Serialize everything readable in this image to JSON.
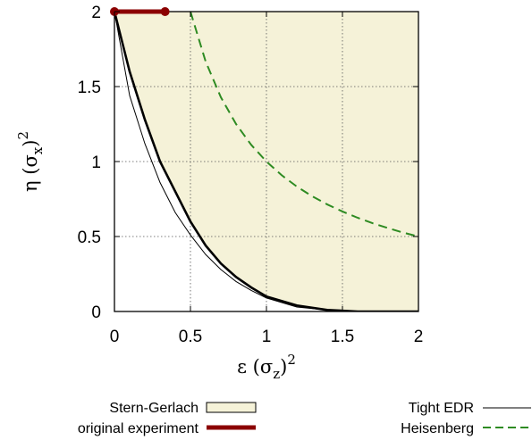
{
  "chart_data": {
    "type": "line",
    "xlabel": {
      "main": "ε (σ",
      "sub": "z",
      "close": ")",
      "sup": "2"
    },
    "ylabel": {
      "main": "η (σ",
      "sub": "x",
      "close": ")",
      "sup": "2"
    },
    "xlim": [
      0,
      2
    ],
    "ylim": [
      0,
      2
    ],
    "xticks": [
      "0",
      "0.5",
      "1",
      "1.5",
      "2"
    ],
    "yticks": [
      "0",
      "0.5",
      "1",
      "1.5",
      "2"
    ],
    "grid": true,
    "legend_position": "bottom",
    "series": [
      {
        "name": "Stern-Gerlach",
        "style": "filled-region",
        "color": "#f5f2d8",
        "lower_boundary": [
          [
            0,
            2
          ],
          [
            0.1,
            1.6
          ],
          [
            0.2,
            1.28
          ],
          [
            0.3,
            1.0
          ],
          [
            0.4,
            0.8
          ],
          [
            0.5,
            0.6
          ],
          [
            0.6,
            0.44
          ],
          [
            0.7,
            0.32
          ],
          [
            0.8,
            0.23
          ],
          [
            0.9,
            0.16
          ],
          [
            1.0,
            0.1
          ],
          [
            1.2,
            0.04
          ],
          [
            1.4,
            0.01
          ],
          [
            1.6,
            0.0
          ],
          [
            2,
            0
          ]
        ]
      },
      {
        "name": "original experiment",
        "style": "thick-line-with-endpoints",
        "color": "#8b0000",
        "points": [
          [
            0,
            2
          ],
          [
            0.333,
            2
          ]
        ]
      },
      {
        "name": "Tight EDR",
        "style": "thin-solid",
        "color": "#000000",
        "points": [
          [
            0,
            2
          ],
          [
            0.1,
            1.44
          ],
          [
            0.2,
            1.12
          ],
          [
            0.3,
            0.86
          ],
          [
            0.4,
            0.66
          ],
          [
            0.5,
            0.51
          ],
          [
            0.6,
            0.38
          ],
          [
            0.7,
            0.28
          ],
          [
            0.8,
            0.2
          ],
          [
            0.9,
            0.14
          ],
          [
            1.0,
            0.09
          ],
          [
            1.2,
            0.03
          ],
          [
            1.4,
            0.01
          ],
          [
            1.6,
            0.0
          ],
          [
            2,
            0
          ]
        ]
      },
      {
        "name": "",
        "style": "thick-solid",
        "color": "#000000",
        "points": [
          [
            0,
            2
          ],
          [
            0.1,
            1.6
          ],
          [
            0.2,
            1.28
          ],
          [
            0.3,
            1.0
          ],
          [
            0.4,
            0.8
          ],
          [
            0.5,
            0.6
          ],
          [
            0.6,
            0.44
          ],
          [
            0.7,
            0.32
          ],
          [
            0.8,
            0.23
          ],
          [
            0.9,
            0.16
          ],
          [
            1.0,
            0.1
          ],
          [
            1.2,
            0.04
          ],
          [
            1.4,
            0.01
          ],
          [
            1.6,
            0.0
          ],
          [
            2,
            0
          ]
        ]
      },
      {
        "name": "Heisenberg",
        "style": "dashed",
        "color": "#2e8b22",
        "points": [
          [
            0.5,
            2
          ],
          [
            0.6,
            1.667
          ],
          [
            0.7,
            1.429
          ],
          [
            0.8,
            1.25
          ],
          [
            0.9,
            1.111
          ],
          [
            1.0,
            1.0
          ],
          [
            1.1,
            0.909
          ],
          [
            1.2,
            0.833
          ],
          [
            1.3,
            0.769
          ],
          [
            1.4,
            0.714
          ],
          [
            1.5,
            0.667
          ],
          [
            1.6,
            0.625
          ],
          [
            1.7,
            0.588
          ],
          [
            1.8,
            0.556
          ],
          [
            1.9,
            0.526
          ],
          [
            2.0,
            0.5
          ]
        ]
      }
    ]
  }
}
